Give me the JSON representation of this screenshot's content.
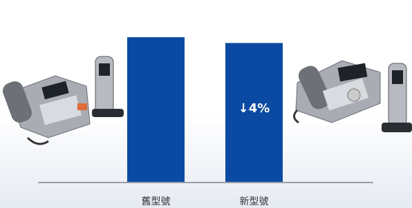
{
  "chart_data": {
    "type": "bar",
    "categories": [
      "舊型號",
      "新型號"
    ],
    "values": [
      100,
      96
    ],
    "color": "#0b4aa2",
    "annotation": "↓4%"
  }
}
